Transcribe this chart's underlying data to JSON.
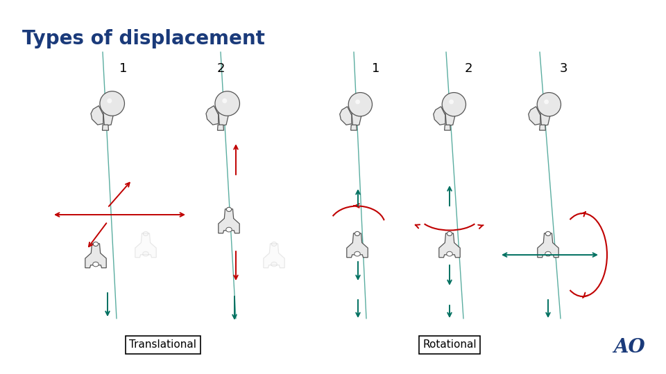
{
  "title": "Types of displacement",
  "title_color": "#1a3a7a",
  "title_fontsize": 20,
  "title_weight": "bold",
  "label_translational": "Translational",
  "label_rotational": "Rotational",
  "ao_text": "AO",
  "ao_color": "#1a3a7a",
  "bg_color": "#ffffff",
  "arrow_red": "#c00000",
  "arrow_green": "#007060",
  "nail_color": "#5aada0",
  "bone_fill": "#e8e8e8",
  "bone_fill2": "#f0f0f0",
  "bone_edge": "#555555",
  "bone_edge_light": "#aaaaaa"
}
